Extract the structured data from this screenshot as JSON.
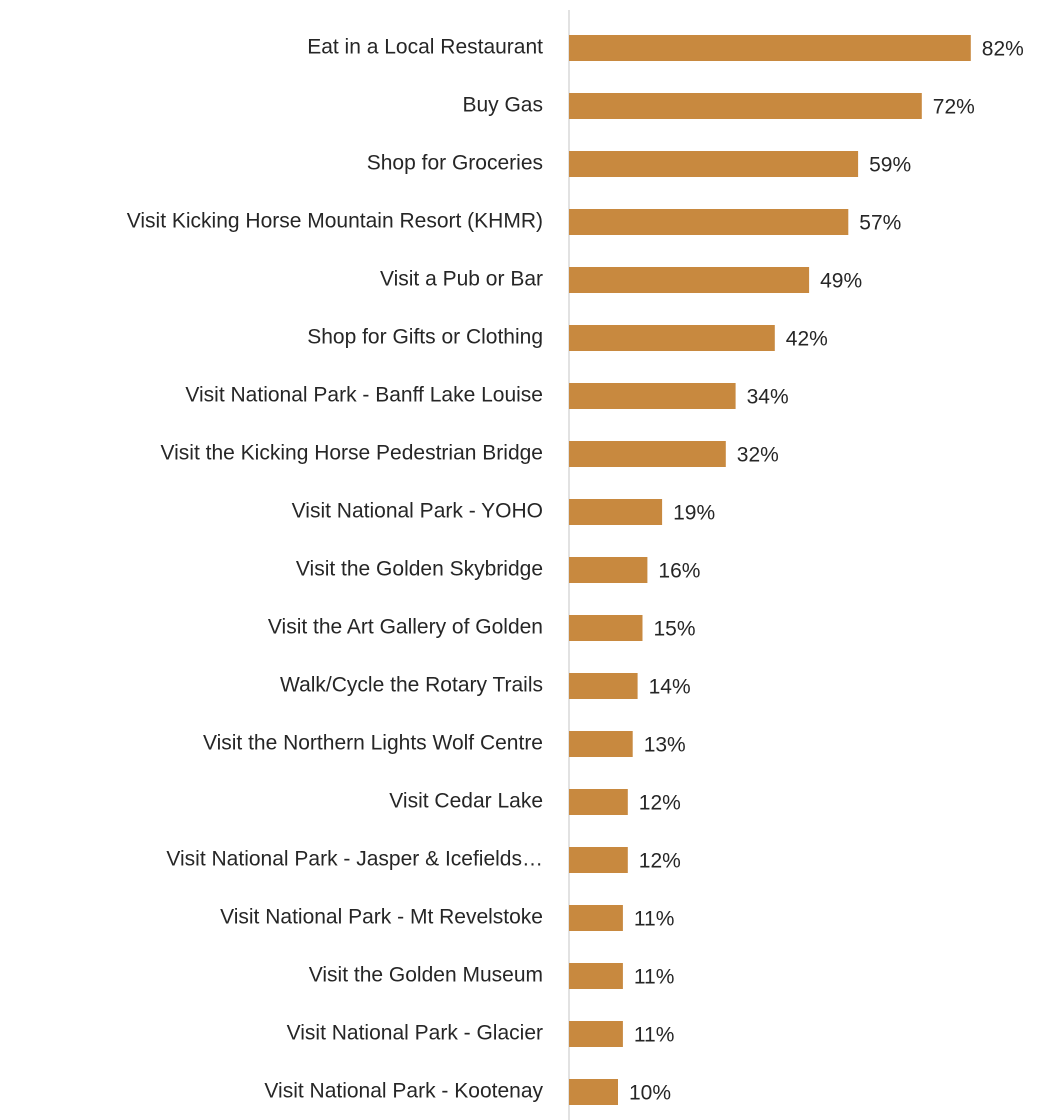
{
  "chart_data": {
    "type": "bar",
    "orientation": "horizontal",
    "categories": [
      "Eat in a Local Restaurant",
      "Buy Gas",
      "Shop for Groceries",
      "Visit Kicking Horse Mountain Resort (KHMR)",
      "Visit a Pub or Bar",
      "Shop for Gifts or Clothing",
      "Visit National Park - Banff Lake Louise",
      "Visit the Kicking Horse Pedestrian Bridge",
      "Visit National Park - YOHO",
      "Visit the Golden Skybridge",
      "Visit the Art Gallery of Golden",
      "Walk/Cycle the Rotary Trails",
      "Visit the Northern Lights Wolf Centre",
      "Visit Cedar Lake",
      "Visit National Park - Jasper & Icefields…",
      "Visit National Park - Mt  Revelstoke",
      "Visit the Golden Museum",
      "Visit National Park - Glacier",
      "Visit National Park - Kootenay"
    ],
    "values": [
      82,
      72,
      59,
      57,
      49,
      42,
      34,
      32,
      19,
      16,
      15,
      14,
      13,
      12,
      12,
      11,
      11,
      11,
      10
    ],
    "value_labels": [
      "82%",
      "72%",
      "59%",
      "57%",
      "49%",
      "42%",
      "34%",
      "32%",
      "19%",
      "16%",
      "15%",
      "14%",
      "13%",
      "12%",
      "12%",
      "11%",
      "11%",
      "11%",
      "10%"
    ],
    "color": "#c8893f"
  }
}
